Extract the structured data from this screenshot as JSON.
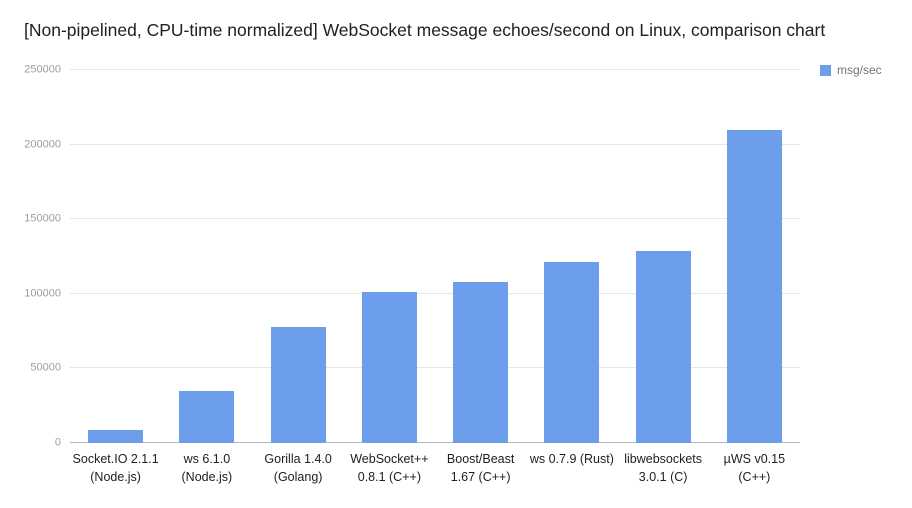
{
  "legend": {
    "label": "msg/sec",
    "color": "#6d9eeb"
  },
  "chart_data": {
    "type": "bar",
    "title": "[Non-pipelined, CPU-time normalized] WebSocket message echoes/second on Linux, comparison chart",
    "categories": [
      "Socket.IO 2.1.1\n(Node.js)",
      "ws 6.1.0\n(Node.js)",
      "Gorilla 1.4.0\n(Golang)",
      "WebSocket++\n0.8.1 (C++)",
      "Boost/Beast\n1.67 (C++)",
      "ws 0.7.9 (Rust)",
      "libwebsockets\n3.0.1 (C)",
      "µWS v0.15\n(C++)"
    ],
    "values": [
      9000,
      35000,
      78000,
      101000,
      108000,
      121000,
      129000,
      210000
    ],
    "series_name": "msg/sec",
    "xlabel": "",
    "ylabel": "",
    "ylim": [
      0,
      250000
    ],
    "yticks": [
      0,
      50000,
      100000,
      150000,
      200000,
      250000
    ],
    "grid": true,
    "legend_position": "top-right",
    "bar_color": "#6d9eeb",
    "background_color": "#ffffff"
  }
}
